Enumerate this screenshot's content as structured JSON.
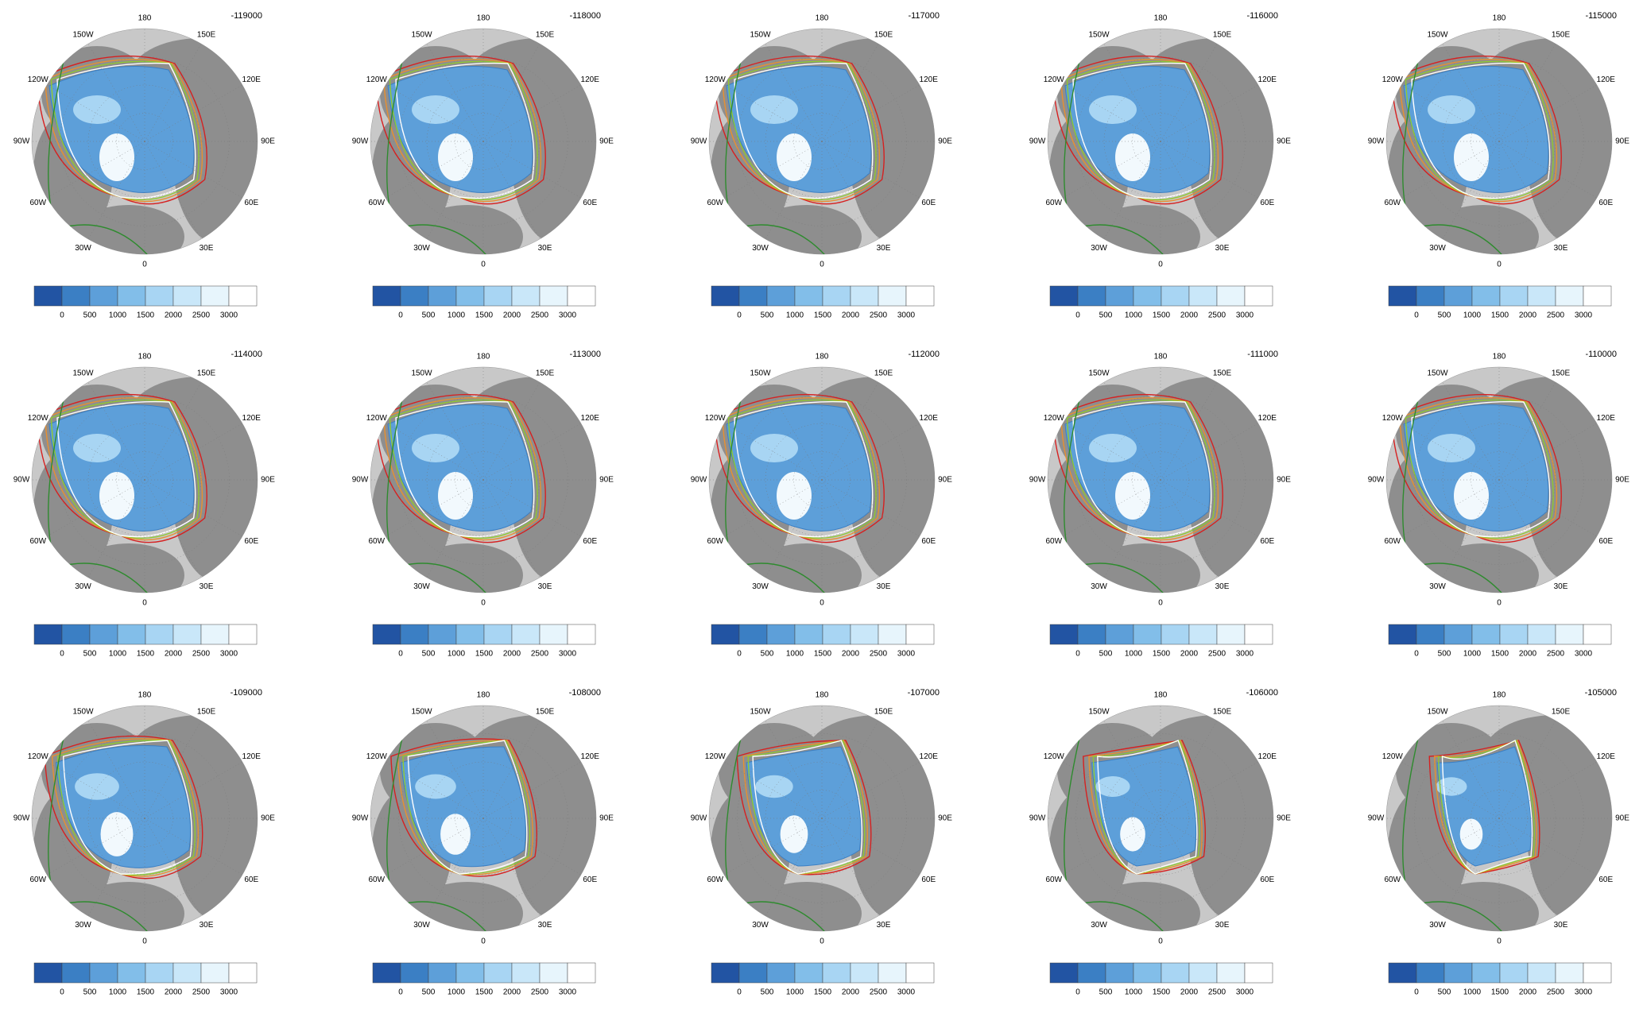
{
  "panels": [
    {
      "label": "-119000"
    },
    {
      "label": "-118000"
    },
    {
      "label": "-117000"
    },
    {
      "label": "-116000"
    },
    {
      "label": "-115000"
    },
    {
      "label": "-114000"
    },
    {
      "label": "-113000"
    },
    {
      "label": "-112000"
    },
    {
      "label": "-111000"
    },
    {
      "label": "-110000"
    },
    {
      "label": "-109000"
    },
    {
      "label": "-108000"
    },
    {
      "label": "-107000"
    },
    {
      "label": "-106000"
    },
    {
      "label": "-105000"
    }
  ],
  "lon_labels": [
    "180",
    "150E",
    "120E",
    "90E",
    "60E",
    "30E",
    "0",
    "30W",
    "60W",
    "90W",
    "120W",
    "150W"
  ],
  "colorbar": {
    "colors": [
      "#2254a3",
      "#3b7fc4",
      "#5d9fd9",
      "#82bee9",
      "#a8d5f3",
      "#c9e7f9",
      "#e7f5fc",
      "#ffffff"
    ],
    "ticks": [
      "0",
      "500",
      "1000",
      "1500",
      "2000",
      "2500",
      "3000"
    ]
  }
}
